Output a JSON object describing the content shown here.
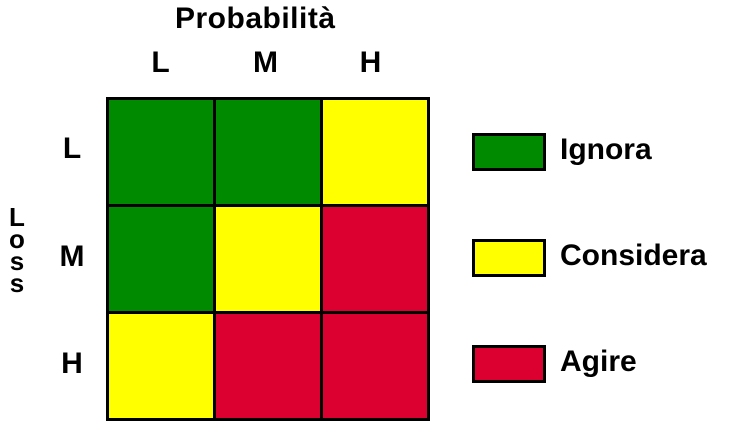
{
  "title": "Probabilità",
  "columns": [
    "L",
    "M",
    "H"
  ],
  "rows": [
    "L",
    "M",
    "H"
  ],
  "row_axis_label": [
    "L",
    "o",
    "s",
    "s"
  ],
  "colors": {
    "green": "#008a00",
    "yellow": "#ffff00",
    "red": "#dc0030"
  },
  "matrix": [
    [
      "green",
      "green",
      "yellow"
    ],
    [
      "green",
      "yellow",
      "red"
    ],
    [
      "yellow",
      "red",
      "red"
    ]
  ],
  "legend": [
    {
      "label": "Ignora",
      "color": "green"
    },
    {
      "label": "Considera",
      "color": "yellow"
    },
    {
      "label": "Agire",
      "color": "red"
    }
  ]
}
